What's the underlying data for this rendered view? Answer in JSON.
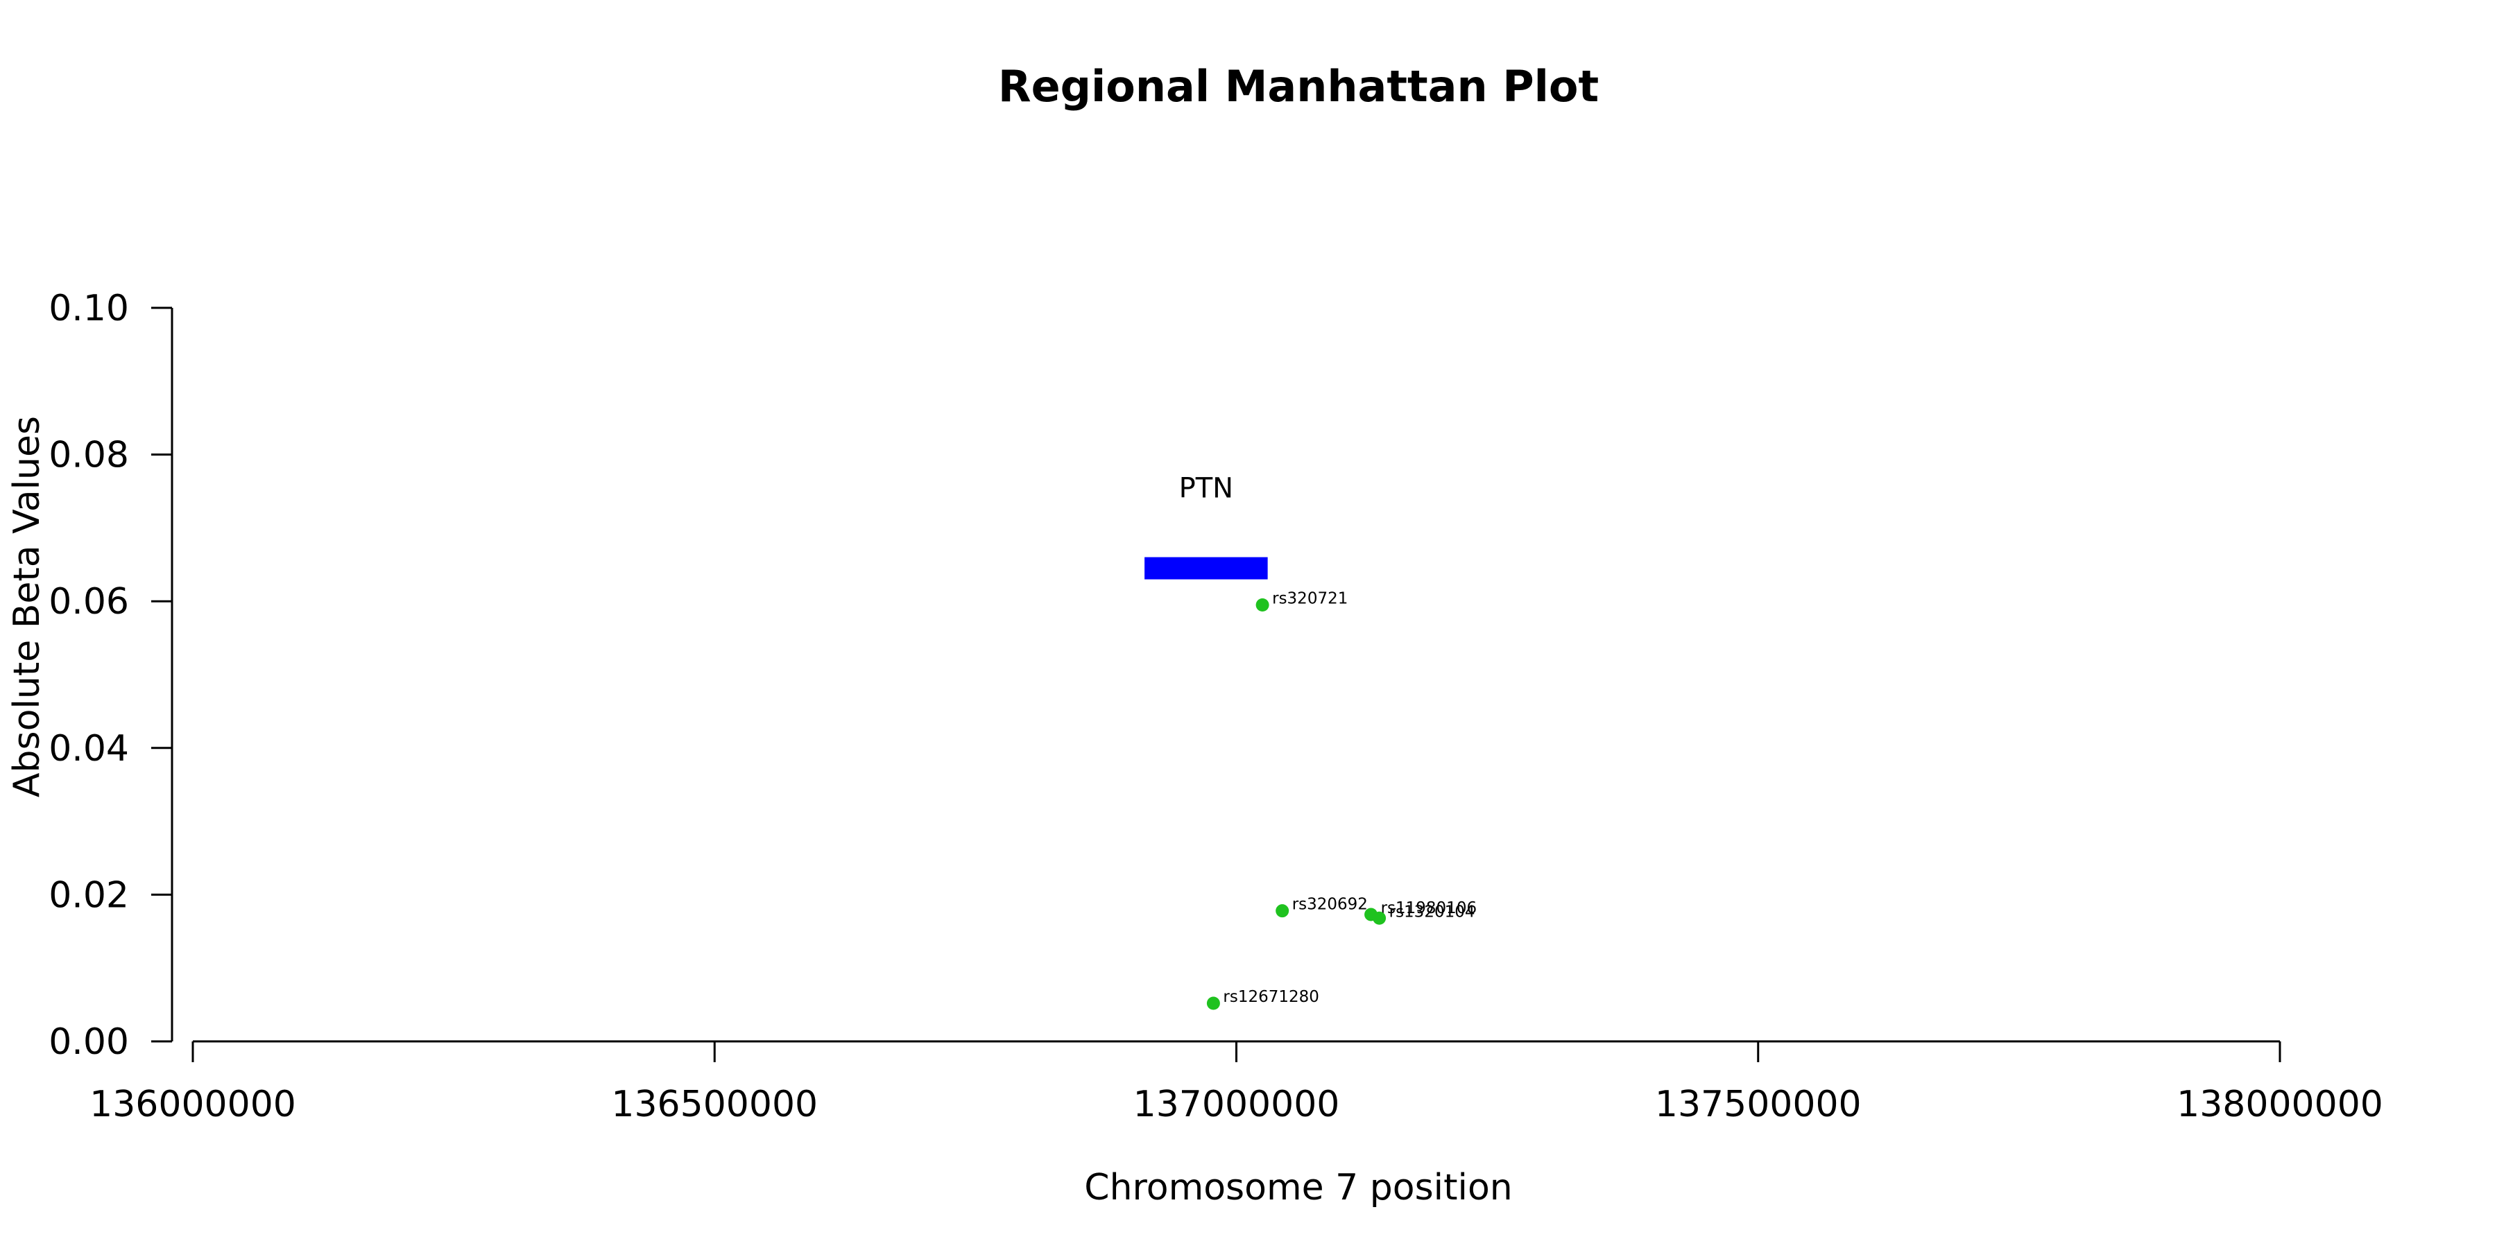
{
  "chart_data": {
    "type": "scatter",
    "title": "Regional Manhattan Plot",
    "xlabel": "Chromosome 7 position",
    "ylabel": "Absolute Beta Values",
    "xlim": [
      136000000,
      138000000
    ],
    "ylim": [
      0,
      0.1
    ],
    "x_ticks": [
      136000000,
      136500000,
      137000000,
      137500000,
      138000000
    ],
    "x_tick_labels": [
      "136000000",
      "136500000",
      "137000000",
      "137500000",
      "138000000"
    ],
    "y_ticks": [
      0,
      0.02,
      0.04,
      0.06,
      0.08,
      0.1
    ],
    "y_tick_labels": [
      "0.00",
      "0.02",
      "0.04",
      "0.06",
      "0.08",
      "0.10"
    ],
    "grid": false,
    "point_color": "#1fc21f",
    "points": [
      {
        "label": "rs320721",
        "x": 137025000,
        "y": 0.0595
      },
      {
        "label": "rs320692",
        "x": 137044000,
        "y": 0.0178
      },
      {
        "label": "rs11980106",
        "x": 137129000,
        "y": 0.0173
      },
      {
        "label": "rs1320104",
        "x": 137137000,
        "y": 0.0168
      },
      {
        "label": "rs12671280",
        "x": 136978000,
        "y": 0.0052
      }
    ],
    "genes": [
      {
        "name": "PTN",
        "start": 136912000,
        "end": 137030000,
        "y": 0.0645,
        "color": "#0000ff"
      }
    ]
  }
}
